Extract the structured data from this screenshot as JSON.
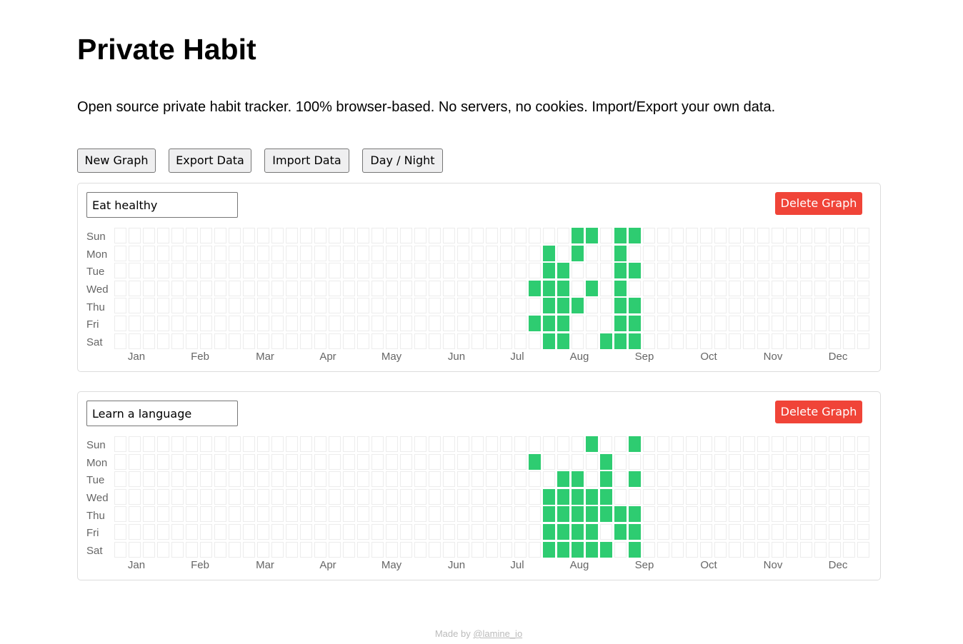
{
  "title": "Private Habit",
  "tagline": "Open source private habit tracker. 100% browser-based. No servers, no cookies. Import/Export your own data.",
  "toolbar": {
    "new_graph": "New Graph",
    "export_data": "Export Data",
    "import_data": "Import Data",
    "day_night": "Day / Night"
  },
  "days": [
    "Sun",
    "Mon",
    "Tue",
    "Wed",
    "Thu",
    "Fri",
    "Sat"
  ],
  "months": [
    "Jan",
    "Feb",
    "Mar",
    "Apr",
    "May",
    "Jun",
    "Jul",
    "Aug",
    "Sep",
    "Oct",
    "Nov",
    "Dec"
  ],
  "total_weeks": 53,
  "colors": {
    "filled": "#2ecc71",
    "empty": "#ffffff",
    "delete": "#f04438"
  },
  "graphs": [
    {
      "name": "Eat healthy",
      "delete_label": "Delete Graph",
      "filled": [
        [
          32,
          0
        ],
        [
          33,
          0
        ],
        [
          35,
          0
        ],
        [
          36,
          0
        ],
        [
          30,
          1
        ],
        [
          32,
          1
        ],
        [
          35,
          1
        ],
        [
          30,
          2
        ],
        [
          31,
          2
        ],
        [
          35,
          2
        ],
        [
          36,
          2
        ],
        [
          29,
          3
        ],
        [
          30,
          3
        ],
        [
          31,
          3
        ],
        [
          33,
          3
        ],
        [
          35,
          3
        ],
        [
          30,
          4
        ],
        [
          31,
          4
        ],
        [
          32,
          4
        ],
        [
          35,
          4
        ],
        [
          36,
          4
        ],
        [
          29,
          5
        ],
        [
          30,
          5
        ],
        [
          31,
          5
        ],
        [
          35,
          5
        ],
        [
          36,
          5
        ],
        [
          30,
          6
        ],
        [
          31,
          6
        ],
        [
          34,
          6
        ],
        [
          35,
          6
        ],
        [
          36,
          6
        ]
      ]
    },
    {
      "name": "Learn a language",
      "delete_label": "Delete Graph",
      "filled": [
        [
          33,
          0
        ],
        [
          36,
          0
        ],
        [
          29,
          1
        ],
        [
          34,
          1
        ],
        [
          31,
          2
        ],
        [
          32,
          2
        ],
        [
          34,
          2
        ],
        [
          36,
          2
        ],
        [
          30,
          3
        ],
        [
          31,
          3
        ],
        [
          32,
          3
        ],
        [
          33,
          3
        ],
        [
          34,
          3
        ],
        [
          30,
          4
        ],
        [
          31,
          4
        ],
        [
          32,
          4
        ],
        [
          33,
          4
        ],
        [
          34,
          4
        ],
        [
          35,
          4
        ],
        [
          36,
          4
        ],
        [
          30,
          5
        ],
        [
          31,
          5
        ],
        [
          32,
          5
        ],
        [
          33,
          5
        ],
        [
          35,
          5
        ],
        [
          36,
          5
        ],
        [
          30,
          6
        ],
        [
          31,
          6
        ],
        [
          32,
          6
        ],
        [
          33,
          6
        ],
        [
          34,
          6
        ],
        [
          36,
          6
        ]
      ]
    }
  ],
  "footer": {
    "prefix": "Made by",
    "link": "@lamine_io"
  }
}
